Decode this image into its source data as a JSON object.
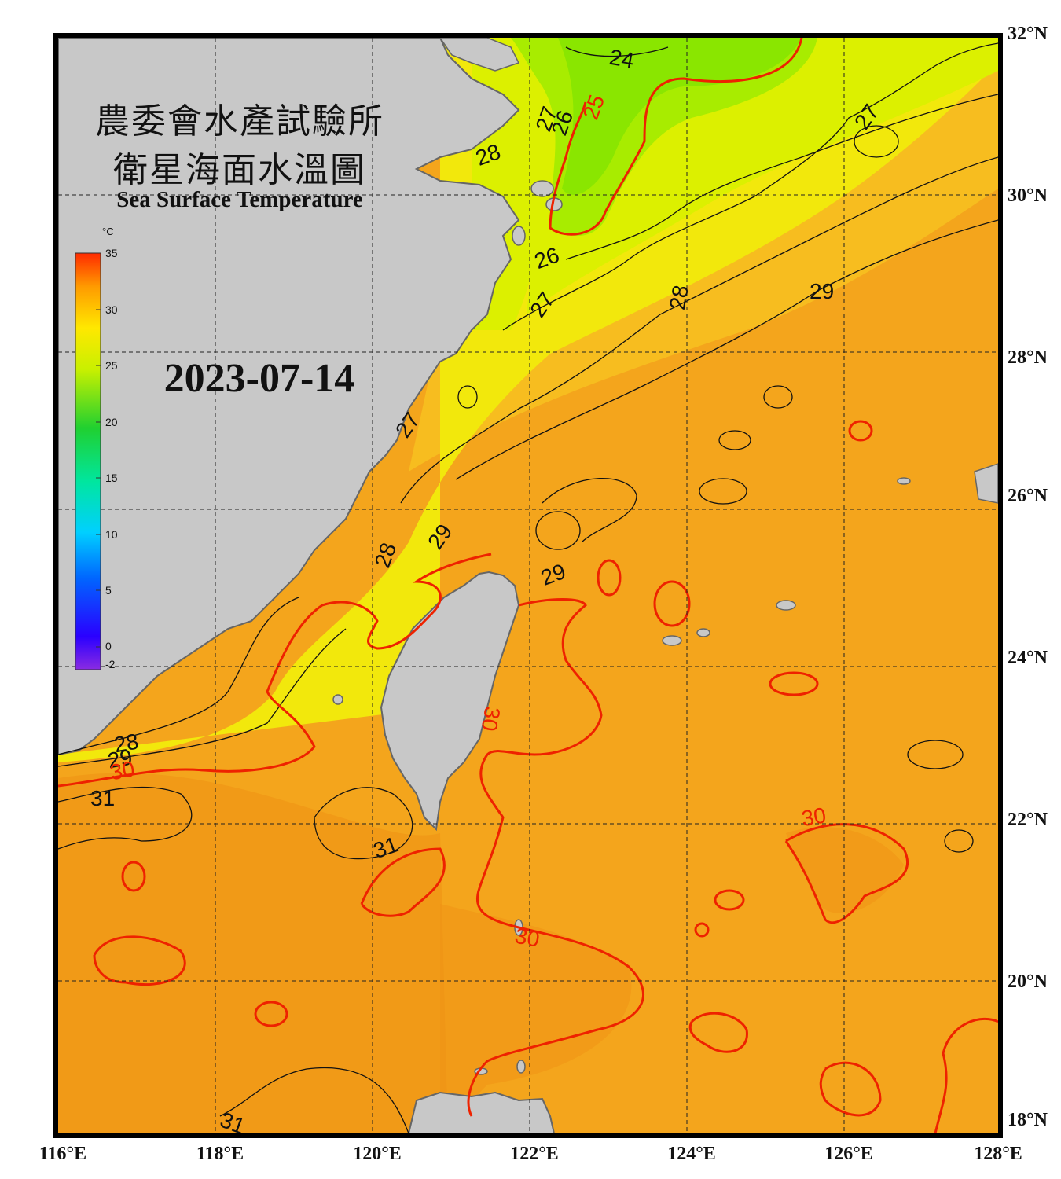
{
  "title": {
    "zh_line1": "農委會水產試驗所",
    "zh_line2": "衛星海面水溫圖",
    "en": "Sea Surface Temperature"
  },
  "date": "2023-07-14",
  "colorbar": {
    "unit": "°C",
    "ticks": [
      "35",
      "30",
      "25",
      "20",
      "15",
      "10",
      "5",
      "0",
      "-2"
    ],
    "tick_values": [
      35,
      30,
      25,
      20,
      15,
      10,
      5,
      0,
      -2
    ],
    "range": [
      -2,
      35
    ]
  },
  "axes": {
    "lon_labels": [
      "116°E",
      "118°E",
      "120°E",
      "122°E",
      "124°E",
      "126°E",
      "128°E"
    ],
    "lat_labels": [
      "32°N",
      "30°N",
      "28°N",
      "26°N",
      "24°N",
      "22°N",
      "20°N",
      "18°N"
    ]
  },
  "contour_labels": [
    {
      "text": "24",
      "color": "black"
    },
    {
      "text": "25",
      "color": "red"
    },
    {
      "text": "27",
      "color": "black"
    },
    {
      "text": "26",
      "color": "black"
    },
    {
      "text": "28",
      "color": "black"
    },
    {
      "text": "27",
      "color": "black"
    },
    {
      "text": "26",
      "color": "black"
    },
    {
      "text": "27",
      "color": "black"
    },
    {
      "text": "28",
      "color": "black"
    },
    {
      "text": "29",
      "color": "black"
    },
    {
      "text": "27",
      "color": "black"
    },
    {
      "text": "29",
      "color": "black"
    },
    {
      "text": "28",
      "color": "black"
    },
    {
      "text": "29",
      "color": "black"
    },
    {
      "text": "28",
      "color": "black"
    },
    {
      "text": "29",
      "color": "black"
    },
    {
      "text": "30",
      "color": "red"
    },
    {
      "text": "31",
      "color": "black"
    },
    {
      "text": "31",
      "color": "black"
    },
    {
      "text": "30",
      "color": "red"
    },
    {
      "text": "30",
      "color": "red"
    },
    {
      "text": "30",
      "color": "red"
    },
    {
      "text": "31",
      "color": "black"
    }
  ],
  "colors": {
    "land": "#c8c8c8",
    "coast": "#666666",
    "warm_sea": "#f5a21a",
    "cool_sea": "#9cf000",
    "red_contour": "#ee2200",
    "black_contour": "#111111"
  }
}
